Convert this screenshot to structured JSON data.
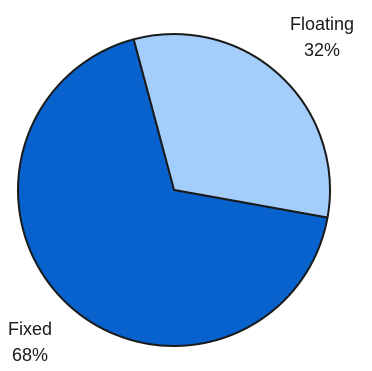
{
  "chart_data": {
    "type": "pie",
    "title": "",
    "slices": [
      {
        "label": "Floating",
        "value": 32,
        "value_label": "32%",
        "color": "#a3cdfb"
      },
      {
        "label": "Fixed",
        "value": 68,
        "value_label": "68%",
        "color": "#0762cd"
      }
    ]
  }
}
